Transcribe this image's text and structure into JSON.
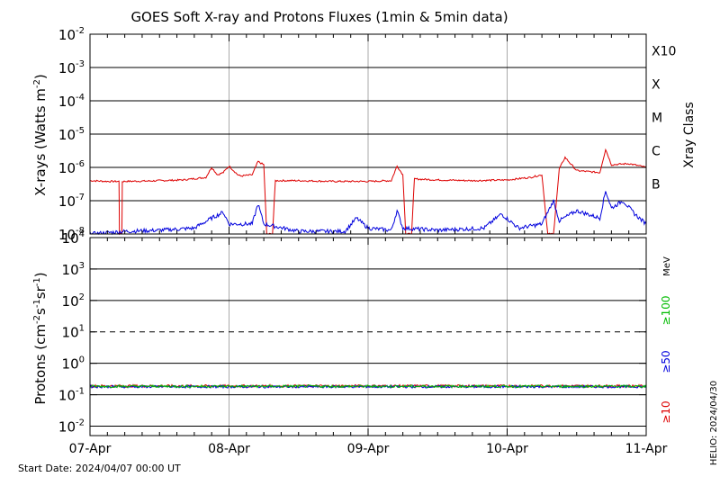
{
  "chart_data": [
    {
      "type": "line",
      "title": "GOES Soft X-ray and Protons Fluxes   (1min & 5min data)",
      "ylabel_base": "X-rays (Watts m",
      "ylabel_exp": "-2",
      "ylabel_close": ")",
      "y_scale": "log",
      "ylim": [
        1e-08,
        0.01
      ],
      "ytick_base": "10",
      "yticks": [
        {
          "value": 1e-08,
          "exp": "-8"
        },
        {
          "value": 1e-07,
          "exp": "-7"
        },
        {
          "value": 1e-06,
          "exp": "-6"
        },
        {
          "value": 1e-05,
          "exp": "-5"
        },
        {
          "value": 0.0001,
          "exp": "-4"
        },
        {
          "value": 0.001,
          "exp": "-3"
        },
        {
          "value": 0.01,
          "exp": "-2"
        }
      ],
      "right_axis_title": "Xray Class",
      "classes": [
        {
          "label": "B",
          "value": 1e-07
        },
        {
          "label": "C",
          "value": 1e-06
        },
        {
          "label": "M",
          "value": 1e-05
        },
        {
          "label": "X",
          "value": 0.0001
        },
        {
          "label": "X10",
          "value": 0.001
        }
      ],
      "xlim": [
        "2024-04-07 00:00",
        "2024-04-11 00:00"
      ],
      "series": [
        {
          "color": "#dd0000",
          "points": [
            [
              "2024-04-07 00:00",
              4e-07
            ],
            [
              "2024-04-07 03:00",
              3.8e-07
            ],
            [
              "2024-04-07 05:00",
              3.8e-07
            ],
            [
              "2024-04-07 05:05",
              1e-08
            ],
            [
              "2024-04-07 05:30",
              1e-08
            ],
            [
              "2024-04-07 05:35",
              3.8e-07
            ],
            [
              "2024-04-07 10:00",
              3.9e-07
            ],
            [
              "2024-04-07 16:00",
              4.2e-07
            ],
            [
              "2024-04-07 20:00",
              5e-07
            ],
            [
              "2024-04-07 21:00",
              1e-06
            ],
            [
              "2024-04-07 22:00",
              6e-07
            ],
            [
              "2024-04-07 23:00",
              7e-07
            ],
            [
              "2024-04-08 00:00",
              1.1e-06
            ],
            [
              "2024-04-08 01:30",
              6e-07
            ],
            [
              "2024-04-08 02:00",
              5.5e-07
            ],
            [
              "2024-04-08 04:00",
              6e-07
            ],
            [
              "2024-04-08 05:00",
              1.5e-06
            ],
            [
              "2024-04-08 06:00",
              1.2e-06
            ],
            [
              "2024-04-08 06:30",
              1e-08
            ],
            [
              "2024-04-08 07:30",
              1e-08
            ],
            [
              "2024-04-08 08:00",
              4e-07
            ],
            [
              "2024-04-08 12:00",
              4e-07
            ],
            [
              "2024-04-08 18:00",
              3.8e-07
            ],
            [
              "2024-04-09 00:00",
              3.8e-07
            ],
            [
              "2024-04-09 04:00",
              4e-07
            ],
            [
              "2024-04-09 05:00",
              1.1e-06
            ],
            [
              "2024-04-09 06:00",
              6e-07
            ],
            [
              "2024-04-09 06:30",
              1e-08
            ],
            [
              "2024-04-09 07:30",
              1e-08
            ],
            [
              "2024-04-09 08:00",
              4.5e-07
            ],
            [
              "2024-04-09 12:00",
              4.2e-07
            ],
            [
              "2024-04-09 18:00",
              4e-07
            ],
            [
              "2024-04-10 00:00",
              4.2e-07
            ],
            [
              "2024-04-10 04:00",
              5e-07
            ],
            [
              "2024-04-10 06:00",
              6e-07
            ],
            [
              "2024-04-10 07:00",
              1e-08
            ],
            [
              "2024-04-10 08:00",
              1e-08
            ],
            [
              "2024-04-10 09:00",
              9e-07
            ],
            [
              "2024-04-10 10:00",
              2e-06
            ],
            [
              "2024-04-10 12:00",
              8e-07
            ],
            [
              "2024-04-10 16:00",
              7e-07
            ],
            [
              "2024-04-10 17:00",
              3.5e-06
            ],
            [
              "2024-04-10 18:00",
              1.2e-06
            ],
            [
              "2024-04-10 21:00",
              1.3e-06
            ],
            [
              "2024-04-11 00:00",
              1e-06
            ]
          ]
        },
        {
          "color": "#0000dd",
          "points": [
            [
              "2024-04-07 00:00",
              1e-08
            ],
            [
              "2024-04-07 06:00",
              1.2e-08
            ],
            [
              "2024-04-07 12:00",
              1.3e-08
            ],
            [
              "2024-04-07 18:00",
              1.5e-08
            ],
            [
              "2024-04-07 21:00",
              3e-08
            ],
            [
              "2024-04-07 23:00",
              4.5e-08
            ],
            [
              "2024-04-08 00:00",
              2e-08
            ],
            [
              "2024-04-08 04:00",
              2e-08
            ],
            [
              "2024-04-08 05:00",
              8e-08
            ],
            [
              "2024-04-08 06:00",
              2e-08
            ],
            [
              "2024-04-08 12:00",
              1.2e-08
            ],
            [
              "2024-04-08 20:00",
              1.2e-08
            ],
            [
              "2024-04-08 22:00",
              3e-08
            ],
            [
              "2024-04-09 00:00",
              1.5e-08
            ],
            [
              "2024-04-09 04:00",
              1.3e-08
            ],
            [
              "2024-04-09 05:00",
              5e-08
            ],
            [
              "2024-04-09 06:00",
              1.5e-08
            ],
            [
              "2024-04-09 12:00",
              1.3e-08
            ],
            [
              "2024-04-09 20:00",
              1.5e-08
            ],
            [
              "2024-04-09 23:00",
              4e-08
            ],
            [
              "2024-04-10 02:00",
              1.5e-08
            ],
            [
              "2024-04-10 06:00",
              2e-08
            ],
            [
              "2024-04-10 08:00",
              1e-07
            ],
            [
              "2024-04-10 09:00",
              2.5e-08
            ],
            [
              "2024-04-10 12:00",
              5e-08
            ],
            [
              "2024-04-10 16:00",
              3e-08
            ],
            [
              "2024-04-10 17:00",
              2e-07
            ],
            [
              "2024-04-10 18:00",
              6e-08
            ],
            [
              "2024-04-10 20:00",
              1e-07
            ],
            [
              "2024-04-10 22:00",
              4e-08
            ],
            [
              "2024-04-11 00:00",
              2e-08
            ]
          ]
        }
      ]
    },
    {
      "type": "line",
      "ylabel_base": "Protons (cm",
      "ylabel_exp1": "-2",
      "ylabel_mid": "s",
      "ylabel_exp2": "-1",
      "ylabel_mid2": "sr",
      "ylabel_exp3": "-1",
      "ylabel_close": ")",
      "y_scale": "log",
      "ylim": [
        0.005,
        10000
      ],
      "ytick_base": "10",
      "yticks": [
        {
          "value": 0.01,
          "exp": "-2"
        },
        {
          "value": 0.1,
          "exp": "-1"
        },
        {
          "value": 1,
          "exp": "0"
        },
        {
          "value": 10,
          "exp": "1"
        },
        {
          "value": 100,
          "exp": "2"
        },
        {
          "value": 1000,
          "exp": "3"
        },
        {
          "value": 10000,
          "exp": "4"
        }
      ],
      "dashed_level": 10,
      "unit_label": "MeV",
      "energy_channels": [
        {
          "label": "≥100",
          "color": "#00bb00"
        },
        {
          "label": "≥50",
          "color": "#0000dd"
        },
        {
          "label": "≥10",
          "color": "#dd0000"
        }
      ],
      "xticks": [
        "07-Apr",
        "08-Apr",
        "09-Apr",
        "10-Apr",
        "11-Apr"
      ],
      "xlim": [
        "2024-04-07 00:00",
        "2024-04-11 00:00"
      ],
      "series": [
        {
          "color": "#dd0000",
          "level": 0.19
        },
        {
          "color": "#0000dd",
          "level": 0.18
        },
        {
          "color": "#00bb00",
          "level": 0.185
        }
      ]
    }
  ],
  "footer": {
    "start_date": "Start Date: 2024/04/07 00:00 UT",
    "helio": "HELIO: 2024/04/30"
  }
}
